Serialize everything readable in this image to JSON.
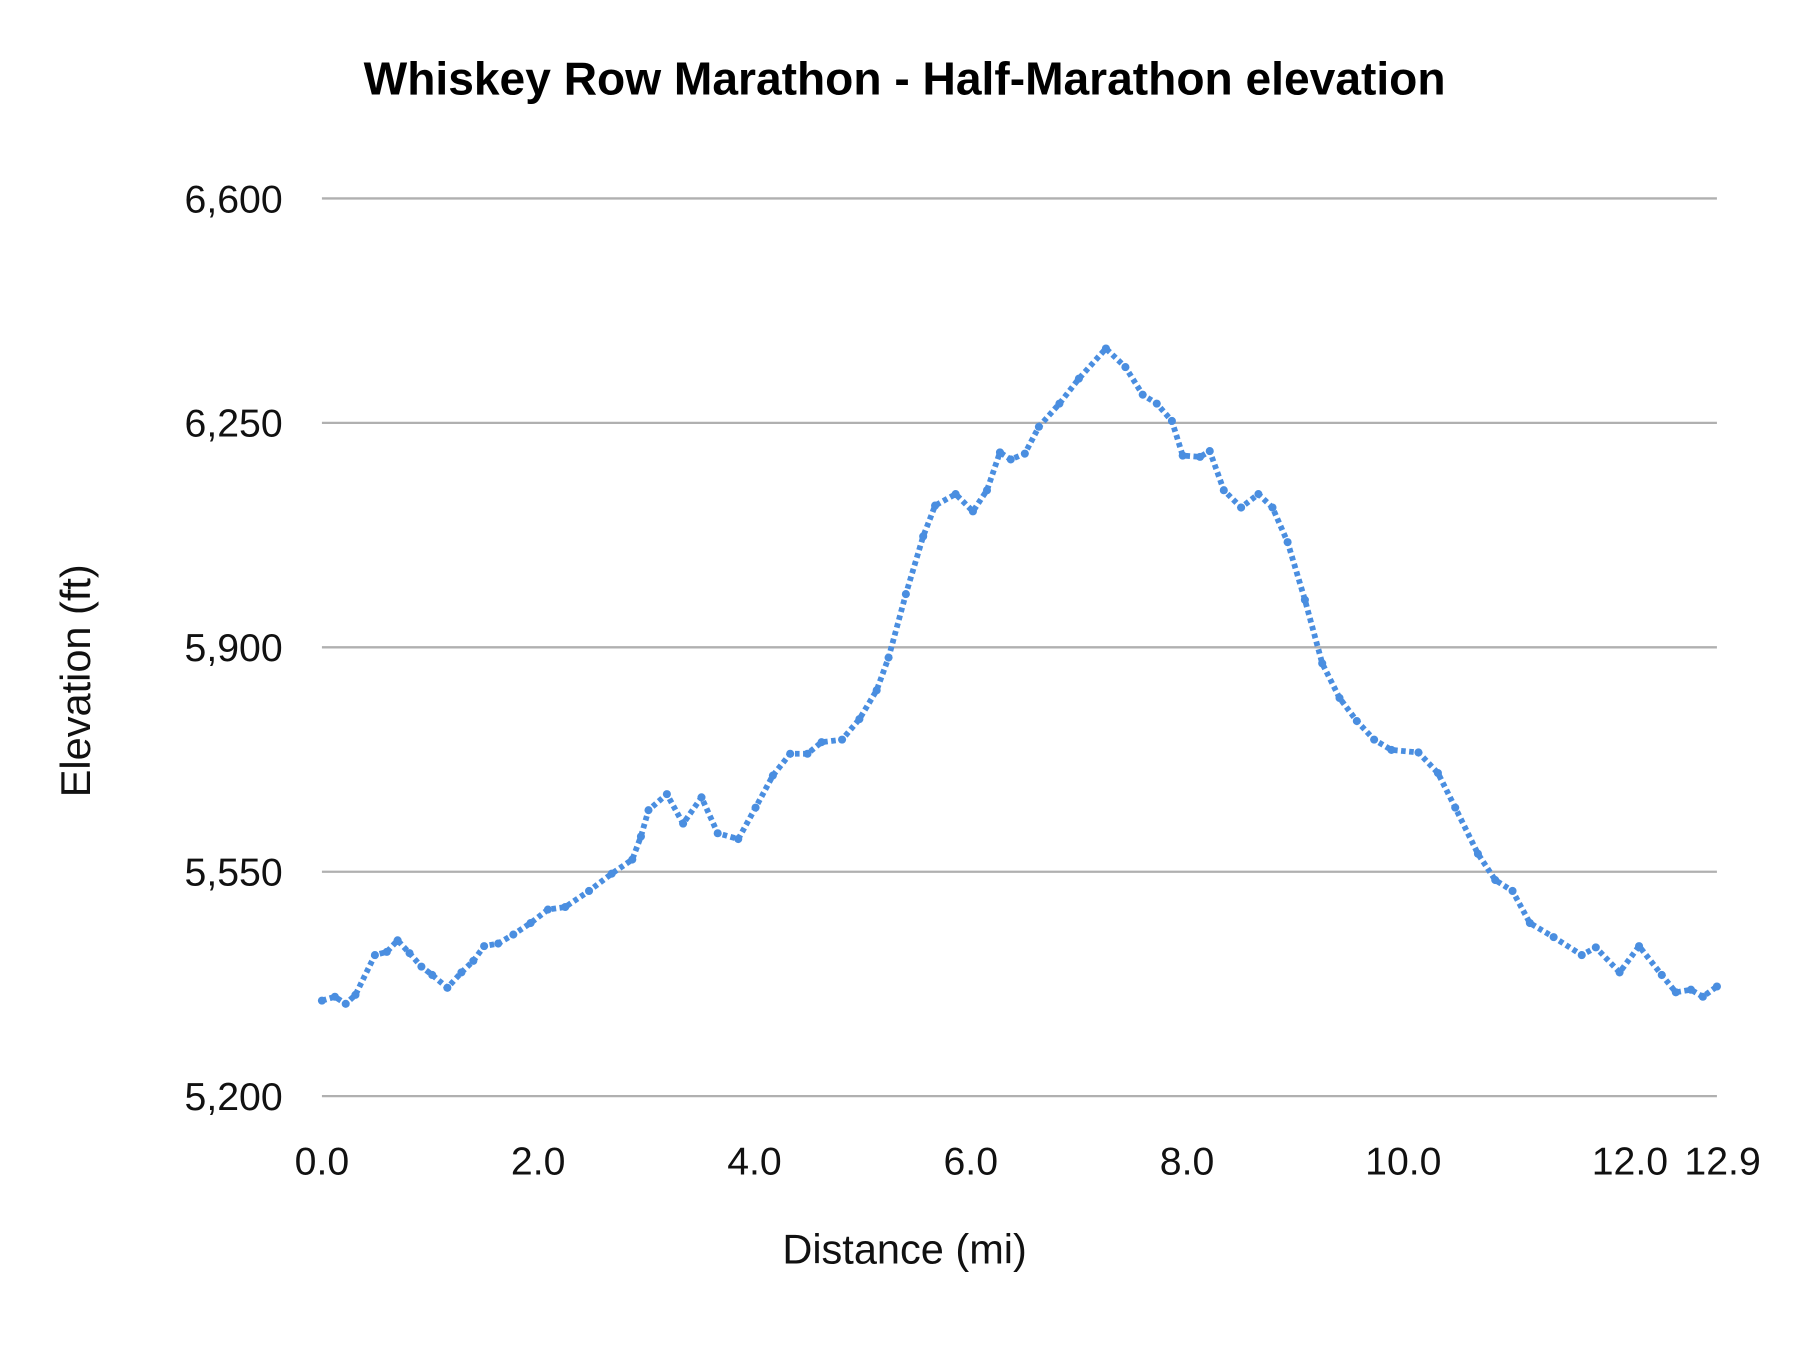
{
  "chart_data": {
    "type": "line",
    "title": "Whiskey Row Marathon - Half-Marathon elevation",
    "xlabel": "Distance (mi)",
    "ylabel": "Elevation (ft)",
    "xlim": [
      0,
      12.9
    ],
    "ylim": [
      5200,
      6600
    ],
    "x_ticks": [
      0,
      2,
      4,
      6,
      8,
      10,
      12,
      12.9
    ],
    "x_tick_labels": [
      "0.0",
      "2.0",
      "4.0",
      "6.0",
      "8.0",
      "10.0",
      "12.0",
      "12.9"
    ],
    "y_ticks": [
      5200,
      5550,
      5900,
      6250,
      6600
    ],
    "y_tick_labels": [
      "5,200",
      "5,550",
      "5,900",
      "6,250",
      "6,600"
    ],
    "grid": "horizontal",
    "legend": "none",
    "color": "#4a8ee0",
    "series": [
      {
        "x": [
          0,
          0.12,
          0.22,
          0.31,
          0.49,
          0.6,
          0.7,
          0.81,
          0.92,
          1.02,
          1.16,
          1.29,
          1.4,
          1.5,
          1.63,
          1.77,
          1.93,
          2.09,
          2.25,
          2.47,
          2.68,
          2.87,
          2.95,
          3.02,
          3.19,
          3.34,
          3.51,
          3.66,
          3.85,
          4.01,
          4.17,
          4.33,
          4.49,
          4.62,
          4.81,
          4.97,
          5.13,
          5.24,
          5.4,
          5.56,
          5.67,
          5.86,
          6.02,
          6.15,
          6.27,
          6.37,
          6.5,
          6.63,
          6.82,
          7.0,
          7.25,
          7.43,
          7.59,
          7.72,
          7.86,
          7.96,
          8.12,
          8.21,
          8.34,
          8.5,
          8.66,
          8.79,
          8.93,
          9.09,
          9.25,
          9.41,
          9.57,
          9.73,
          9.89,
          10.14,
          10.32,
          10.48,
          10.69,
          10.85,
          11.01,
          11.17,
          11.39,
          11.65,
          11.78,
          12.0,
          12.18,
          12.39,
          12.52,
          12.66,
          12.77,
          12.9
        ],
        "y": [
          5349,
          5355,
          5344,
          5358,
          5420,
          5425,
          5443,
          5423,
          5402,
          5389,
          5369,
          5393,
          5411,
          5434,
          5438,
          5452,
          5470,
          5491,
          5495,
          5520,
          5547,
          5569,
          5605,
          5646,
          5671,
          5625,
          5666,
          5610,
          5601,
          5650,
          5700,
          5734,
          5734,
          5752,
          5756,
          5788,
          5833,
          5884,
          5983,
          6073,
          6121,
          6139,
          6112,
          6145,
          6204,
          6193,
          6202,
          6244,
          6280,
          6319,
          6366,
          6337,
          6294,
          6280,
          6253,
          6199,
          6197,
          6206,
          6145,
          6118,
          6139,
          6118,
          6064,
          5974,
          5875,
          5821,
          5785,
          5756,
          5740,
          5736,
          5704,
          5650,
          5578,
          5537,
          5520,
          5470,
          5448,
          5420,
          5432,
          5393,
          5434,
          5389,
          5362,
          5366,
          5355,
          5371
        ]
      }
    ]
  }
}
